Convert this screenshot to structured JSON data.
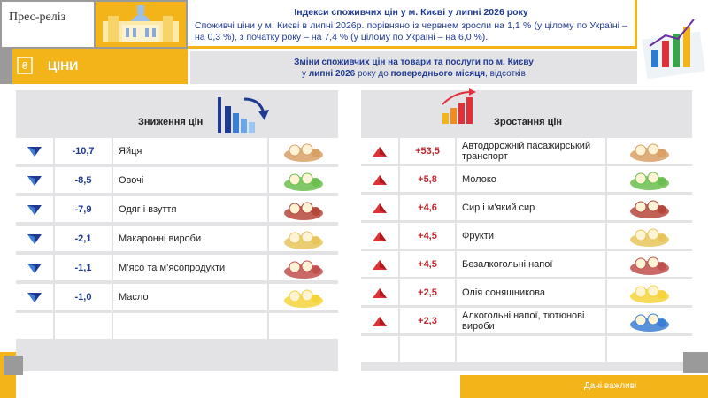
{
  "header": {
    "press": "Прес-реліз",
    "section": "ЦІНИ",
    "title": "Індекси споживчих цін у м. Києві у липні 2026 року",
    "text": "Споживчі ціни у м. Києві в липні 2026р. порівняно із червнем зросли на 1,1 % (у цілому по Україні – на 0,3 %), з початку року – на 7,4 % (у цілому по Україні – на 6,0 %)."
  },
  "subtitle": {
    "line1": "Зміни споживчих цін на товари та послуги по м. Києву",
    "line2": [
      "у ",
      "липні 2026",
      " року до ",
      "попереднього місяця",
      ", відсотків"
    ]
  },
  "decrease": {
    "title": "Зниження цін",
    "rows": [
      [
        "-10,7",
        "Яйця"
      ],
      [
        "-8,5",
        "Овочі"
      ],
      [
        "-7,9",
        "Одяг і взуття"
      ],
      [
        "-2,1",
        "Макаронні вироби"
      ],
      [
        "-1,1",
        "М’ясо та м’ясопродукти"
      ],
      [
        "-1,0",
        "Масло"
      ]
    ]
  },
  "increase": {
    "title": "Зростання цін",
    "rows": [
      [
        "+53,5",
        "Автодорожній пасажирський транспорт"
      ],
      [
        "+5,8",
        "Молоко"
      ],
      [
        "+4,6",
        "Сир і м'який сир"
      ],
      [
        "+4,5",
        "Фрукти"
      ],
      [
        "+4,5",
        "Безалкогольні напої"
      ],
      [
        "+2,5",
        "Олія соняшникова"
      ],
      [
        "+2,3",
        "Алкогольні напої, тютюнові вироби"
      ]
    ]
  },
  "footer": "Дані важливі"
}
